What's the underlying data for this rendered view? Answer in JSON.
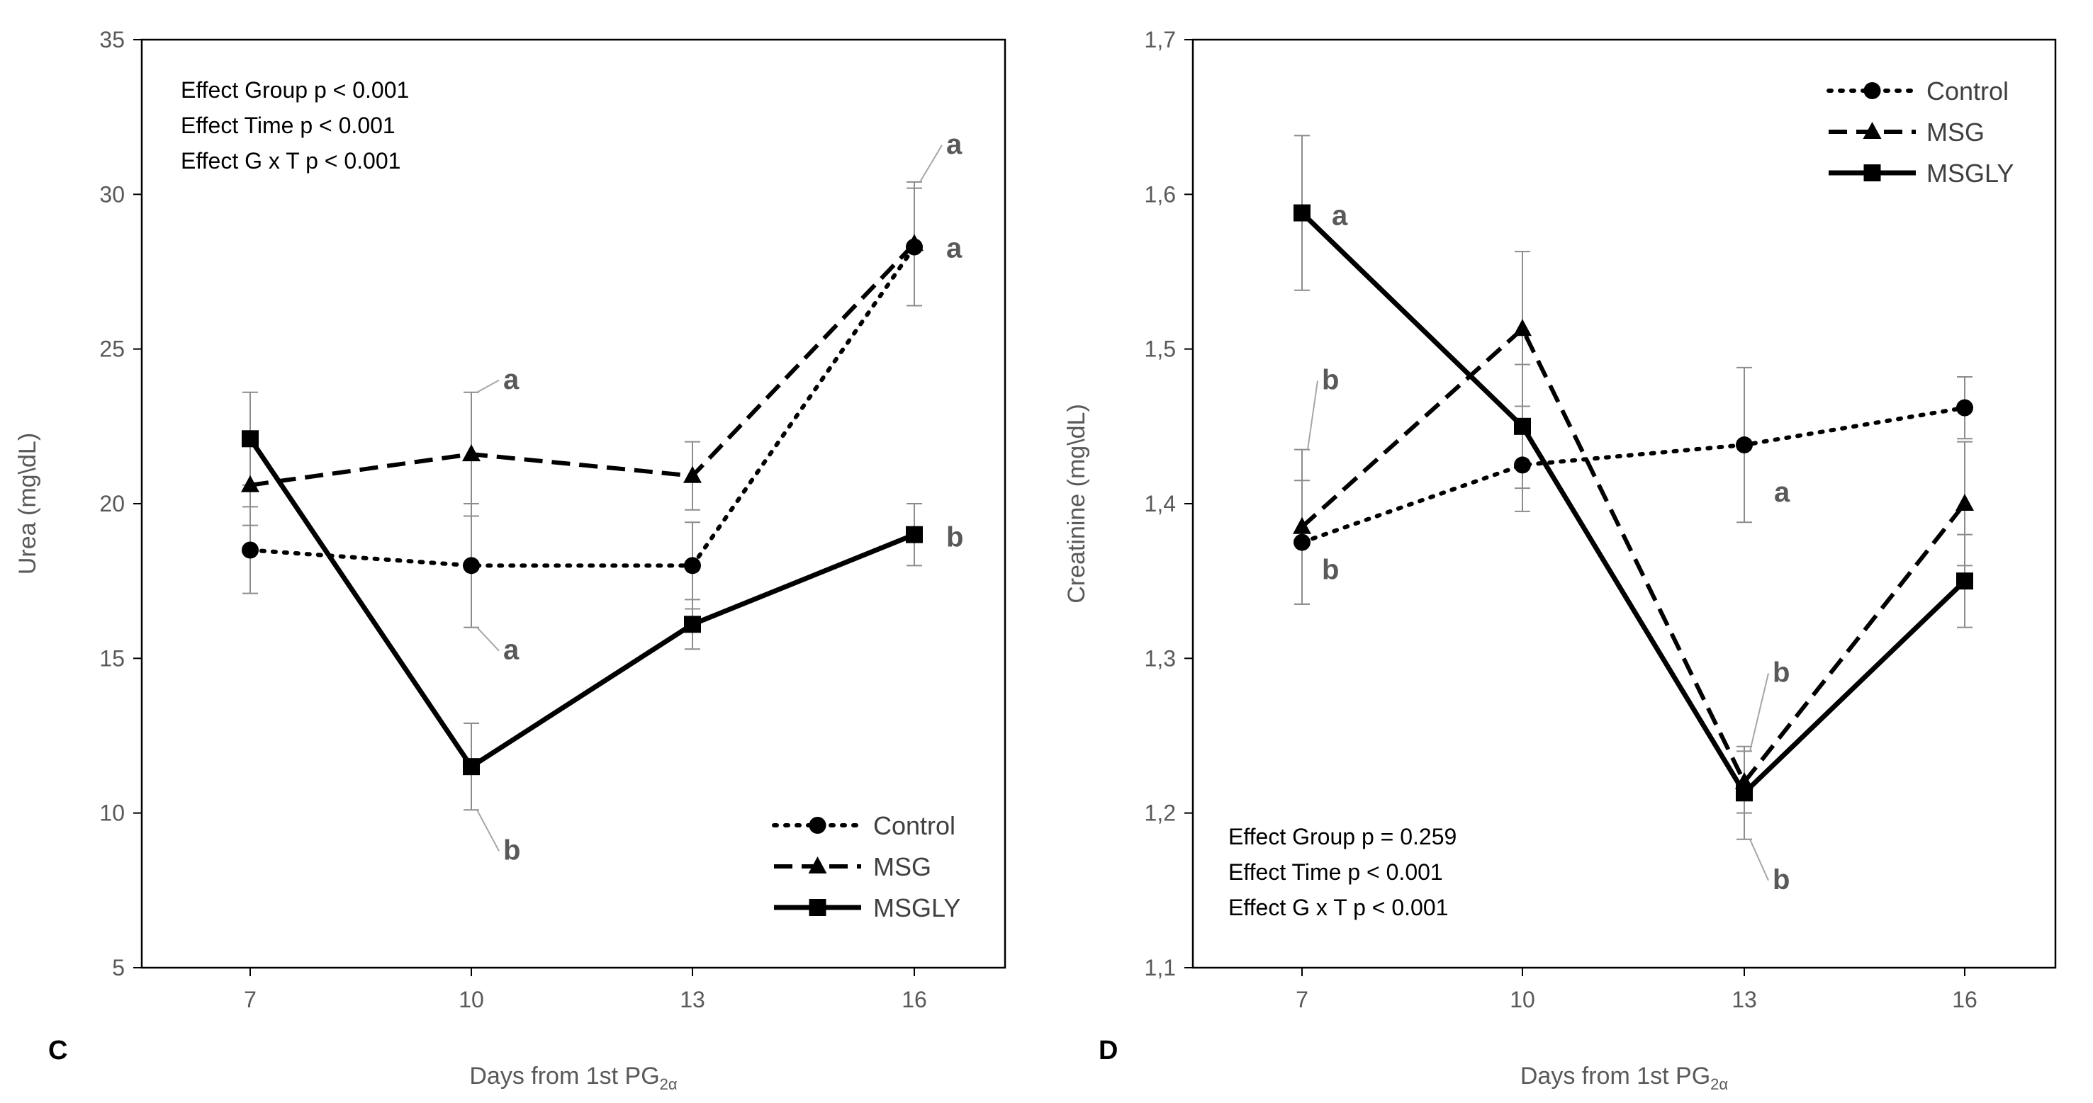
{
  "chart_data": [
    {
      "type": "line",
      "panel": "C",
      "xlabel": "Days from 1st PG",
      "xlabel_sub": "2α",
      "ylabel": "Urea  (mg\\dL)",
      "x": [
        7,
        10,
        13,
        16
      ],
      "ylim": [
        5,
        35
      ],
      "yticks": [
        5,
        10,
        15,
        20,
        25,
        30,
        35
      ],
      "ytick_labels": [
        "5",
        "10",
        "15",
        "20",
        "25",
        "30",
        "35"
      ],
      "grid": false,
      "legend_position": "bottom-right",
      "series": [
        {
          "name": "Control",
          "style": "dotted",
          "marker": "circle",
          "values": [
            18.5,
            18.0,
            18.0,
            28.3
          ],
          "errors": [
            1.4,
            2.0,
            1.4,
            1.9
          ]
        },
        {
          "name": "MSG",
          "style": "dashed",
          "marker": "triangle",
          "values": [
            20.6,
            21.6,
            20.9,
            28.4
          ],
          "errors": [
            1.3,
            2.0,
            1.1,
            2.0
          ]
        },
        {
          "name": "MSGLY",
          "style": "solid",
          "marker": "square",
          "values": [
            22.1,
            11.5,
            16.1,
            19.0
          ],
          "errors": [
            1.5,
            1.4,
            0.8,
            1.0
          ]
        }
      ],
      "stats": [
        "Effect Group p < 0.001",
        "Effect Time p < 0.001",
        "Effect G x T p < 0.001"
      ],
      "annotations": [
        {
          "text": "a",
          "series": "MSG",
          "x": 10,
          "y": 21.6,
          "bar": "upper"
        },
        {
          "text": "a",
          "series": "Control",
          "x": 10,
          "y": 18.0,
          "bar": "lower"
        },
        {
          "text": "b",
          "series": "MSGLY",
          "x": 10,
          "y": 11.5,
          "bar": "lower"
        },
        {
          "text": "a",
          "series": "MSG",
          "x": 16,
          "y": 28.4,
          "bar": "upper"
        },
        {
          "text": "a",
          "series": "Control",
          "x": 16,
          "y": 28.3,
          "bar": "none"
        },
        {
          "text": "b",
          "series": "MSGLY",
          "x": 16,
          "y": 19.0,
          "bar": "none"
        }
      ]
    },
    {
      "type": "line",
      "panel": "D",
      "xlabel": "Days from 1st PG",
      "xlabel_sub": "2α",
      "ylabel": "Creatinine  (mg\\dL)",
      "x": [
        7,
        10,
        13,
        16
      ],
      "ylim": [
        1.1,
        1.7
      ],
      "yticks": [
        1.1,
        1.2,
        1.3,
        1.4,
        1.5,
        1.6,
        1.7
      ],
      "ytick_labels": [
        "1,1",
        "1,2",
        "1,3",
        "1,4",
        "1,5",
        "1,6",
        "1,7"
      ],
      "grid": false,
      "legend_position": "top-right",
      "series": [
        {
          "name": "Control",
          "style": "dotted",
          "marker": "circle",
          "values": [
            1.375,
            1.425,
            1.438,
            1.462
          ],
          "errors": [
            0.04,
            0.03,
            0.05,
            0.02
          ]
        },
        {
          "name": "MSG",
          "style": "dashed",
          "marker": "triangle",
          "values": [
            1.385,
            1.513,
            1.22,
            1.4
          ],
          "errors": [
            0.05,
            0.05,
            0.02,
            0.04
          ]
        },
        {
          "name": "MSGLY",
          "style": "solid",
          "marker": "square",
          "values": [
            1.588,
            1.45,
            1.213,
            1.35
          ],
          "errors": [
            0.05,
            0.04,
            0.03,
            0.03
          ]
        }
      ],
      "stats": [
        "Effect Group p = 0.259",
        "Effect Time p < 0.001",
        "Effect G x T p < 0.001"
      ],
      "annotations": [
        {
          "text": "a",
          "series": "MSGLY",
          "x": 7,
          "y": 1.588,
          "bar": "none"
        },
        {
          "text": "b",
          "series": "MSG",
          "x": 7,
          "y": 1.385,
          "bar": "upper"
        },
        {
          "text": "b",
          "series": "Control",
          "x": 7,
          "y": 1.375,
          "bar": "none"
        },
        {
          "text": "a",
          "series": "Control",
          "x": 13,
          "y": 1.438,
          "bar": "none"
        },
        {
          "text": "b",
          "series": "MSG",
          "x": 13,
          "y": 1.22,
          "bar": "upper"
        },
        {
          "text": "b",
          "series": "MSGLY",
          "x": 13,
          "y": 1.213,
          "bar": "lower"
        }
      ]
    }
  ]
}
